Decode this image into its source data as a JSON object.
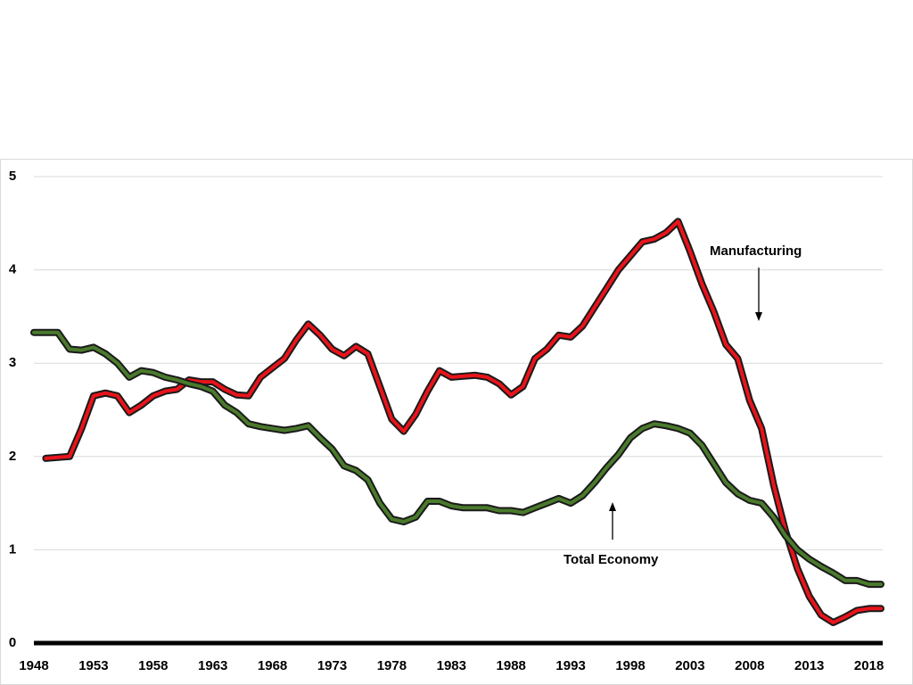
{
  "chart_data": {
    "type": "line",
    "x": [
      1948,
      1949,
      1950,
      1951,
      1952,
      1953,
      1954,
      1955,
      1956,
      1957,
      1958,
      1959,
      1960,
      1961,
      1962,
      1963,
      1964,
      1965,
      1966,
      1967,
      1968,
      1969,
      1970,
      1971,
      1972,
      1973,
      1974,
      1975,
      1976,
      1977,
      1978,
      1979,
      1980,
      1981,
      1982,
      1983,
      1984,
      1985,
      1986,
      1987,
      1988,
      1989,
      1990,
      1991,
      1992,
      1993,
      1994,
      1995,
      1996,
      1997,
      1998,
      1999,
      2000,
      2001,
      2002,
      2003,
      2004,
      2005,
      2006,
      2007,
      2008,
      2009,
      2010,
      2011,
      2012,
      2013,
      2014,
      2015,
      2016,
      2017,
      2018,
      2019
    ],
    "series": [
      {
        "name": "Manufacturing",
        "color": "#e8141b",
        "values": [
          null,
          1.98,
          1.99,
          2.0,
          2.3,
          2.65,
          2.68,
          2.65,
          2.47,
          2.55,
          2.65,
          2.7,
          2.72,
          2.82,
          2.8,
          2.8,
          2.72,
          2.66,
          2.65,
          2.85,
          2.95,
          3.05,
          3.25,
          3.42,
          3.3,
          3.15,
          3.08,
          3.18,
          3.1,
          2.75,
          2.4,
          2.27,
          2.45,
          2.7,
          2.92,
          2.85,
          2.86,
          2.87,
          2.85,
          2.78,
          2.66,
          2.75,
          3.05,
          3.15,
          3.3,
          3.28,
          3.4,
          3.6,
          3.8,
          4.0,
          4.15,
          4.3,
          4.33,
          4.4,
          4.52,
          4.2,
          3.85,
          3.55,
          3.2,
          3.05,
          2.6,
          2.3,
          1.7,
          1.2,
          0.8,
          0.5,
          0.3,
          0.22,
          0.28,
          0.35,
          0.37,
          0.37
        ]
      },
      {
        "name": "Total Economy",
        "color": "#4a7a2c",
        "values": [
          3.33,
          3.33,
          3.33,
          3.15,
          3.14,
          3.17,
          3.1,
          3.0,
          2.85,
          2.92,
          2.9,
          2.85,
          2.82,
          2.78,
          2.75,
          2.7,
          2.55,
          2.47,
          2.35,
          2.32,
          2.3,
          2.28,
          2.3,
          2.33,
          2.2,
          2.08,
          1.9,
          1.85,
          1.75,
          1.5,
          1.33,
          1.3,
          1.35,
          1.52,
          1.52,
          1.47,
          1.45,
          1.45,
          1.45,
          1.42,
          1.42,
          1.4,
          1.45,
          1.5,
          1.55,
          1.5,
          1.58,
          1.72,
          1.88,
          2.02,
          2.2,
          2.3,
          2.35,
          2.33,
          2.3,
          2.25,
          2.12,
          1.92,
          1.72,
          1.6,
          1.53,
          1.5,
          1.35,
          1.15,
          1.0,
          0.9,
          0.82,
          0.75,
          0.67,
          0.67,
          0.63,
          0.63
        ]
      }
    ],
    "xlim": [
      1948,
      2019
    ],
    "xticks": [
      1948,
      1953,
      1958,
      1963,
      1968,
      1973,
      1978,
      1983,
      1988,
      1993,
      1998,
      2003,
      2008,
      2013,
      2018
    ],
    "ylim": [
      0,
      5
    ],
    "yticks": [
      0,
      1,
      2,
      3,
      4,
      5
    ],
    "grid": true
  }
}
